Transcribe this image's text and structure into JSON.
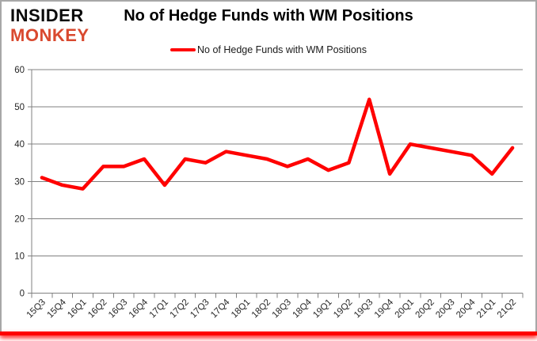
{
  "logo": {
    "line1": "INSIDER",
    "line2": "MONKEY"
  },
  "header": {
    "title": "No of Hedge Funds with WM Positions"
  },
  "legend": {
    "label": "No of Hedge Funds with WM Positions"
  },
  "colors": {
    "series": "#ff0000",
    "grid": "#808080",
    "axis_text": "#262626",
    "title_text": "#000000",
    "logo_black": "#0b0b0b",
    "logo_red": "#d9492f",
    "frame_border": "#a8a8a8"
  },
  "chart_data": {
    "type": "line",
    "title": "No of Hedge Funds with WM Positions",
    "xlabel": "",
    "ylabel": "",
    "ylim": [
      0,
      60
    ],
    "yticks": [
      0,
      10,
      20,
      30,
      40,
      50,
      60
    ],
    "grid": "horizontal",
    "legend_position": "top",
    "categories": [
      "15Q3",
      "15Q4",
      "16Q1",
      "16Q2",
      "16Q3",
      "16Q4",
      "17Q1",
      "17Q2",
      "17Q3",
      "17Q4",
      "18Q1",
      "18Q2",
      "18Q3",
      "18Q4",
      "19Q1",
      "19Q2",
      "19Q3",
      "19Q4",
      "20Q1",
      "20Q2",
      "20Q3",
      "20Q4",
      "21Q1",
      "21Q2"
    ],
    "series": [
      {
        "name": "No of Hedge Funds with WM Positions",
        "color": "#ff0000",
        "values": [
          31,
          29,
          28,
          34,
          34,
          36,
          29,
          36,
          35,
          38,
          37,
          36,
          34,
          36,
          33,
          35,
          52,
          32,
          40,
          39,
          38,
          37,
          32,
          39
        ]
      }
    ]
  }
}
